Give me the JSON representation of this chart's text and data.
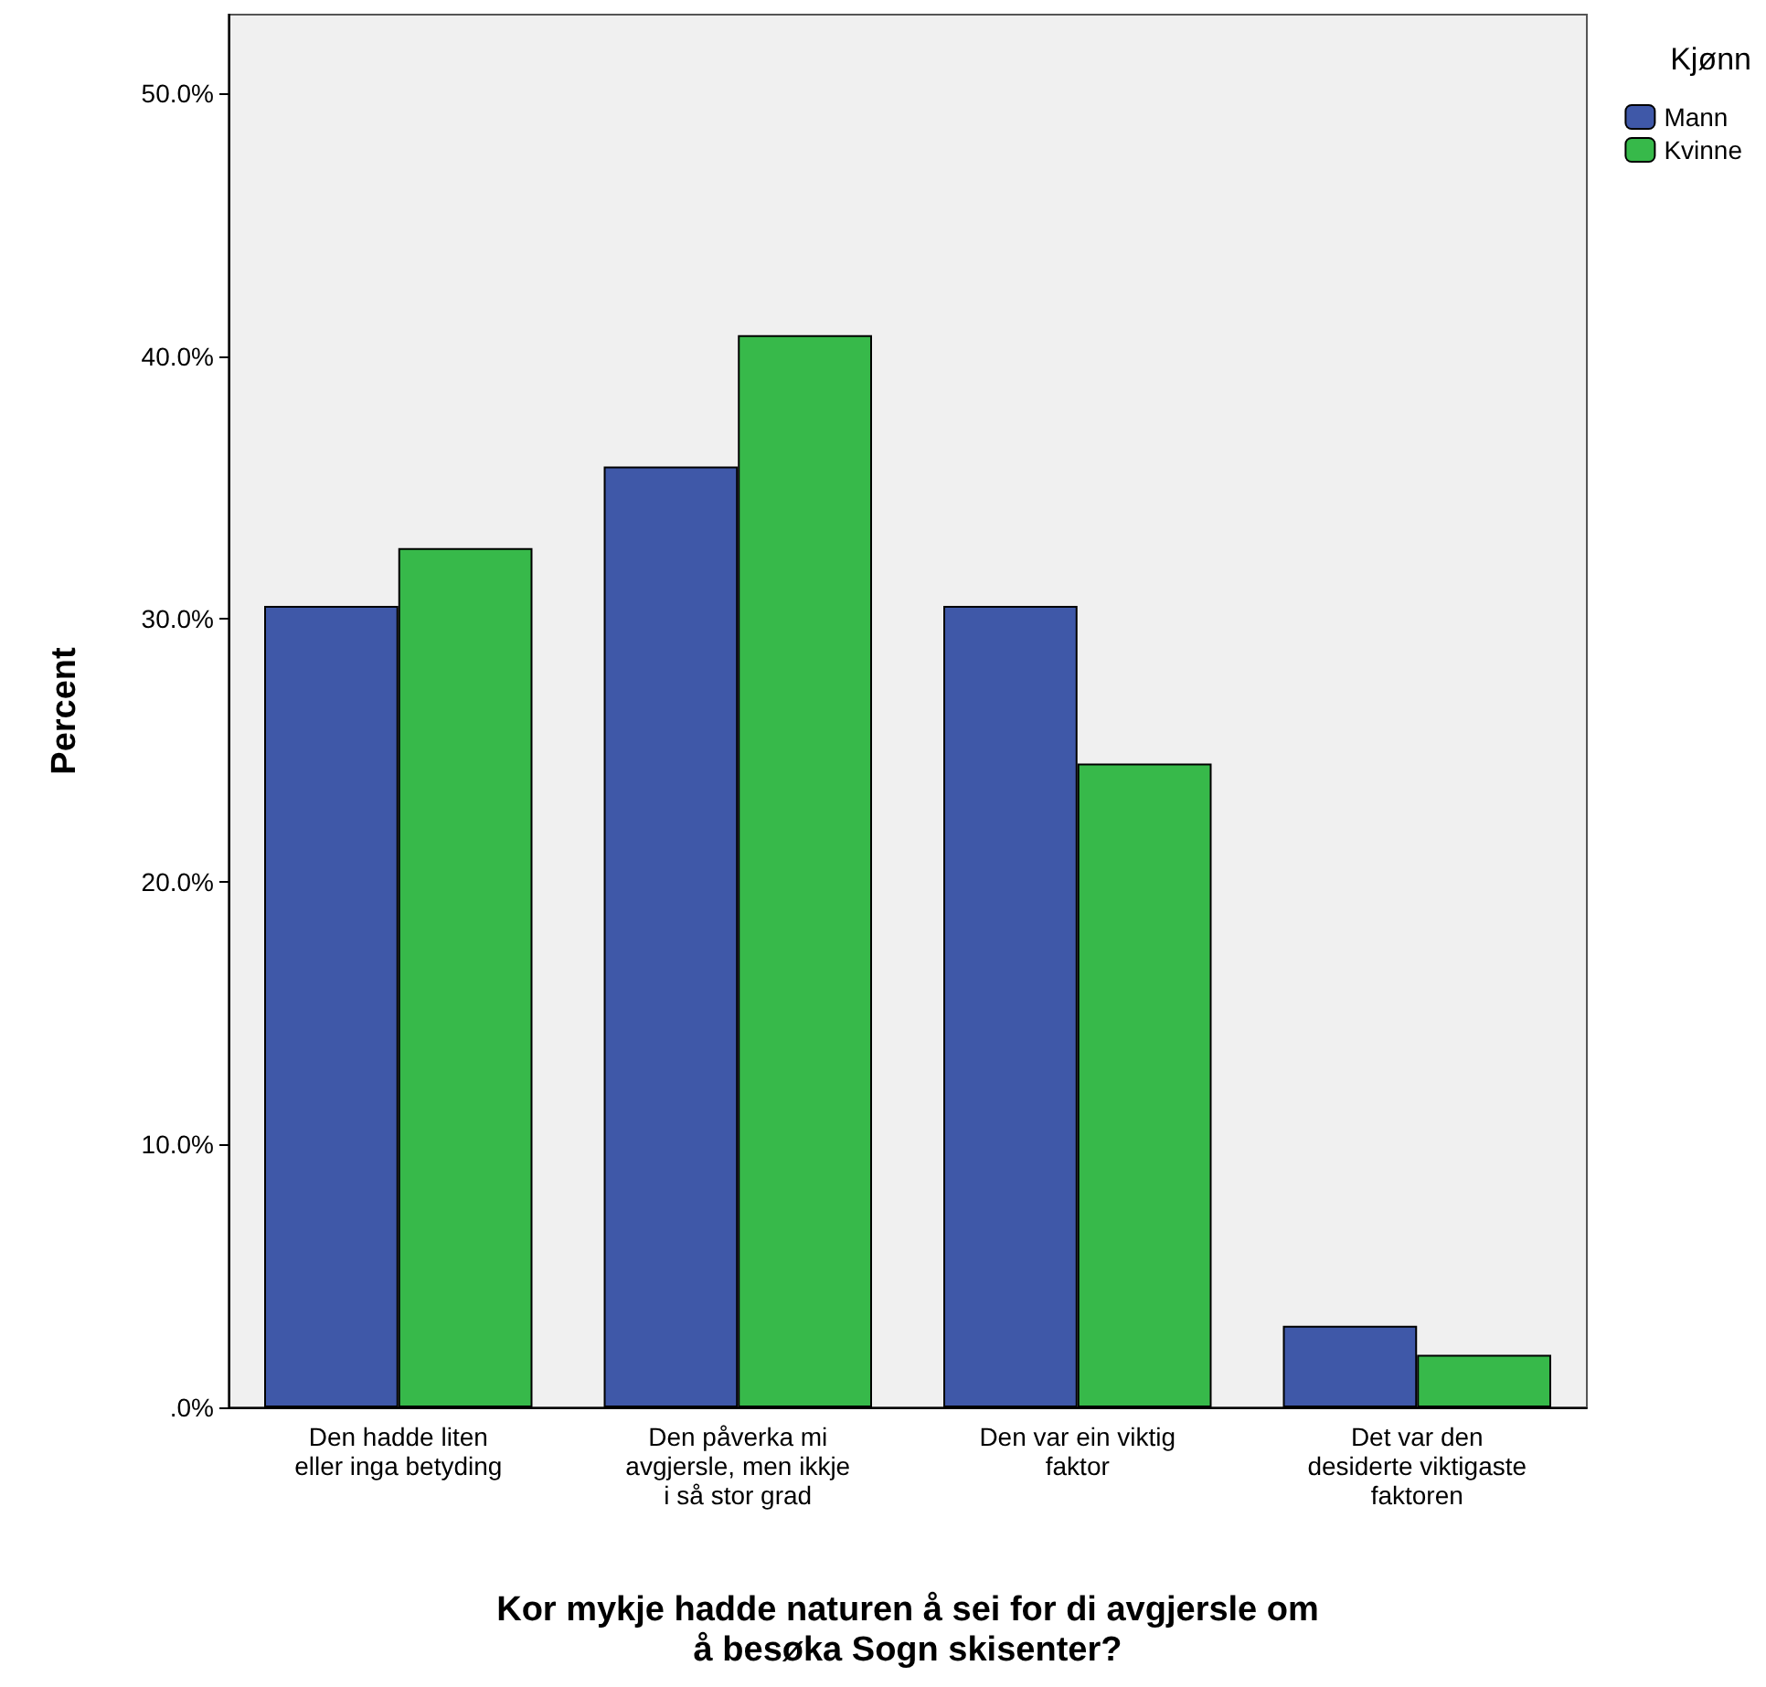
{
  "chart_data": {
    "type": "bar",
    "xlabel": "Kor mykje hadde naturen å sei for di avgjersle om\nå besøka Sogn skisenter?",
    "ylabel": "Percent",
    "legend_title": "Kjønn",
    "categories": [
      "Den hadde liten\neller inga betyding",
      "Den påverka mi\navgjersle, men ikkje\ni så stor grad",
      "Den var ein viktig\nfaktor",
      "Det var den\ndesiderte viktigaste\nfaktoren"
    ],
    "series": [
      {
        "name": "Mann",
        "color": "#3f58a8",
        "values": [
          30.5,
          35.8,
          30.5,
          3.1
        ]
      },
      {
        "name": "Kvinne",
        "color": "#37b94a",
        "values": [
          32.7,
          40.8,
          24.5,
          2.0
        ]
      }
    ],
    "ylim": [
      0,
      53
    ],
    "yticks": [
      {
        "value": 0,
        "label": ".0%"
      },
      {
        "value": 10,
        "label": "10.0%"
      },
      {
        "value": 20,
        "label": "20.0%"
      },
      {
        "value": 30,
        "label": "30.0%"
      },
      {
        "value": 40,
        "label": "40.0%"
      },
      {
        "value": 50,
        "label": "50.0%"
      }
    ],
    "grid": false,
    "legend": "top right"
  }
}
